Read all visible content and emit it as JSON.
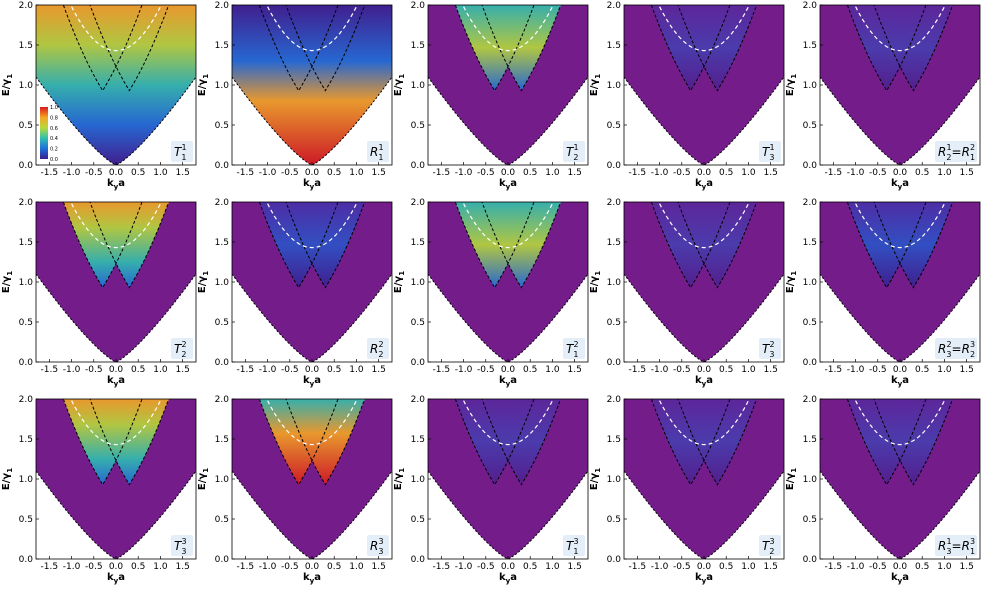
{
  "chart_data": {
    "type": "heatmap",
    "description_rows": 3,
    "description_cols": 5,
    "xlabel_base": "k",
    "xlabel_sub": "y",
    "xlabel_tail": "a",
    "ylabel_base": "E/γ",
    "ylabel_sub": "1",
    "xlim": [
      -1.8,
      1.8
    ],
    "ylim": [
      0,
      2.0
    ],
    "xticks": [
      -1.5,
      -1.0,
      -0.5,
      0.0,
      0.5,
      1.0,
      1.5
    ],
    "xtick_labels": [
      "-1.5",
      "-1.0",
      "-0.5",
      "0.0",
      "0.5",
      "1.0",
      "1.5"
    ],
    "yticks": [
      0.0,
      0.5,
      1.0,
      1.5,
      2.0
    ],
    "ytick_labels": [
      "0.0",
      "0.5",
      "1.0",
      "1.5",
      "2.0"
    ],
    "colorbar": {
      "range": [
        0.0,
        1.0
      ],
      "ticks": [
        "1.0",
        "0.8",
        "0.6",
        "0.4",
        "0.2",
        "0.0"
      ],
      "colors": [
        "#3b1f8f",
        "#1e6fd9",
        "#2fbfb0",
        "#b7d93a",
        "#f5a623",
        "#d7191c"
      ]
    },
    "background_color": "#731c8a",
    "curves": {
      "dashed_black": "bands E = ±ky·0.9+... (parabolic branches)",
      "dashed_white": "upper band"
    },
    "panels": [
      {
        "base": "T",
        "sub": "1",
        "sup": "1",
        "eq": ""
      },
      {
        "base": "R",
        "sub": "1",
        "sup": "1",
        "eq": ""
      },
      {
        "base": "T",
        "sub": "2",
        "sup": "1",
        "eq": ""
      },
      {
        "base": "T",
        "sub": "3",
        "sup": "1",
        "eq": ""
      },
      {
        "base": "R",
        "sub": "2",
        "sup": "1",
        "eq": "R",
        "eqsub": "1",
        "eqsup": "2"
      },
      {
        "base": "T",
        "sub": "2",
        "sup": "2",
        "eq": ""
      },
      {
        "base": "R",
        "sub": "2",
        "sup": "2",
        "eq": ""
      },
      {
        "base": "T",
        "sub": "1",
        "sup": "2",
        "eq": ""
      },
      {
        "base": "T",
        "sub": "3",
        "sup": "2",
        "eq": ""
      },
      {
        "base": "R",
        "sub": "3",
        "sup": "2",
        "eq": "R",
        "eqsub": "2",
        "eqsup": "3"
      },
      {
        "base": "T",
        "sub": "3",
        "sup": "3",
        "eq": ""
      },
      {
        "base": "R",
        "sub": "3",
        "sup": "3",
        "eq": ""
      },
      {
        "base": "T",
        "sub": "1",
        "sup": "3",
        "eq": ""
      },
      {
        "base": "T",
        "sub": "2",
        "sup": "3",
        "eq": ""
      },
      {
        "base": "R",
        "sub": "3",
        "sup": "1",
        "eq": "R",
        "eqsub": "1",
        "eqsup": "3"
      }
    ],
    "panel_fill_styles": [
      "full",
      "full_red",
      "upper_teal",
      "upper_dim",
      "upper_dim",
      "upper_green",
      "sides_blue",
      "upper_teal",
      "upper_dim",
      "right_teal",
      "top_green",
      "upper_red",
      "upper_dim",
      "upper_dim",
      "upper_dim"
    ]
  }
}
